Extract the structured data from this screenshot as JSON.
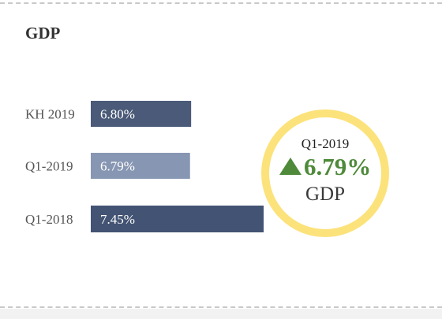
{
  "title": "GDP",
  "chart_data": {
    "type": "bar",
    "orientation": "horizontal",
    "categories": [
      "KH 2019",
      "Q1-2019",
      "Q1-2018"
    ],
    "values": [
      6.8,
      6.79,
      7.45
    ],
    "value_labels": [
      "6.80%",
      "6.79%",
      "7.45%"
    ],
    "bar_colors": [
      "#4a5a78",
      "#8796b2",
      "#435373"
    ],
    "value_label_color": "#ffffff",
    "category_label_color": "#555555",
    "xlim": [
      5.9,
      7.45
    ],
    "grid": false,
    "legend": "none"
  },
  "highlight": {
    "period": "Q1-2019",
    "value": "6.79%",
    "label": "GDP",
    "trend_icon": "up-triangle-icon",
    "value_color": "#4e8a3a",
    "ring_color": "#fce27a"
  }
}
